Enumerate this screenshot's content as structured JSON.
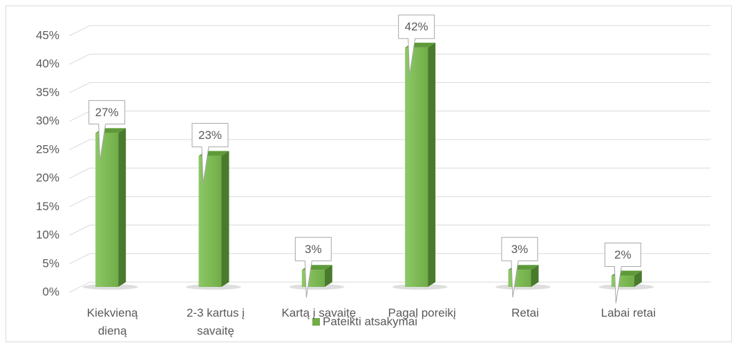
{
  "chart_data": {
    "type": "bar3d",
    "categories": [
      "Kiekvieną dieną",
      "2-3 kartus į savaitę",
      "Kartą į savaitę",
      "Pagal poreikį",
      "Retai",
      "Labai retai"
    ],
    "series": [
      {
        "name": "Pateikti atsakymai",
        "color": "#70ad47",
        "values": [
          27,
          23,
          3,
          42,
          3,
          2
        ],
        "value_labels": [
          "27%",
          "23%",
          "3%",
          "42%",
          "3%",
          "2%"
        ]
      }
    ],
    "ylim": [
      0,
      45
    ],
    "yticks": [
      {
        "value": 0,
        "label": "0%"
      },
      {
        "value": 5,
        "label": "5%"
      },
      {
        "value": 10,
        "label": "10%"
      },
      {
        "value": 15,
        "label": "15%"
      },
      {
        "value": 20,
        "label": "20%"
      },
      {
        "value": 25,
        "label": "25%"
      },
      {
        "value": 30,
        "label": "30%"
      },
      {
        "value": 35,
        "label": "35%"
      },
      {
        "value": 40,
        "label": "40%"
      },
      {
        "value": 45,
        "label": "45%"
      }
    ],
    "grid": true,
    "legend": "bottom"
  }
}
